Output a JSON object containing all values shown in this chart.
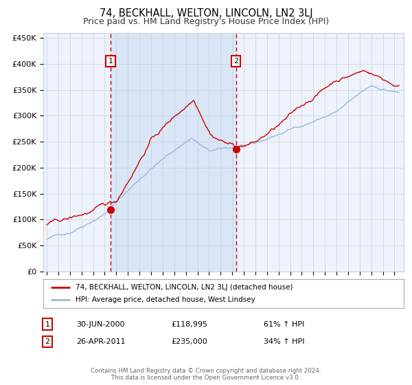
{
  "title": "74, BECKHALL, WELTON, LINCOLN, LN2 3LJ",
  "subtitle": "Price paid vs. HM Land Registry's House Price Index (HPI)",
  "ylabel_ticks": [
    "£0",
    "£50K",
    "£100K",
    "£150K",
    "£200K",
    "£250K",
    "£300K",
    "£350K",
    "£400K",
    "£450K"
  ],
  "ytick_values": [
    0,
    50000,
    100000,
    150000,
    200000,
    250000,
    300000,
    350000,
    400000,
    450000
  ],
  "ylim": [
    0,
    460000
  ],
  "background_color": "#ffffff",
  "plot_bg_color": "#eef2fa",
  "grid_color": "#c8cfe0",
  "red_line_color": "#cc0000",
  "blue_line_color": "#99b8d8",
  "shade_color": "#d8e6f5",
  "vline_color": "#cc0000",
  "marker_color": "#cc0000",
  "title_fontsize": 10.5,
  "subtitle_fontsize": 9,
  "legend_label_red": "74, BECKHALL, WELTON, LINCOLN, LN2 3LJ (detached house)",
  "legend_label_blue": "HPI: Average price, detached house, West Lindsey",
  "transaction1_date": "30-JUN-2000",
  "transaction1_price": "£118,995",
  "transaction1_pct": "61% ↑ HPI",
  "transaction1_x": 2000.5,
  "transaction1_y": 118995,
  "transaction2_date": "26-APR-2011",
  "transaction2_price": "£235,000",
  "transaction2_pct": "34% ↑ HPI",
  "transaction2_x": 2011.32,
  "transaction2_y": 235000,
  "footer": "Contains HM Land Registry data © Crown copyright and database right 2024.\nThis data is licensed under the Open Government Licence v3.0.",
  "xmin": 1994.7,
  "xmax": 2025.8
}
